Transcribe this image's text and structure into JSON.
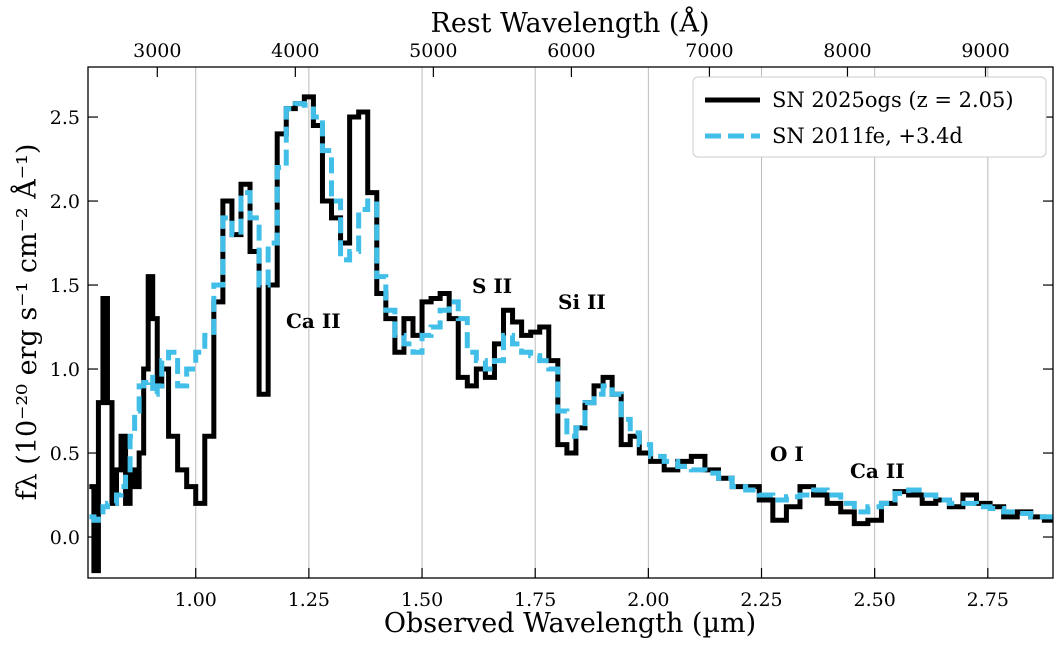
{
  "chart_data": {
    "type": "step",
    "xlabel": "Observed Wavelength (µm)",
    "x2label": "Rest Wavelength (Å)",
    "ylabel": "fλ (10⁻²⁰ erg s⁻¹ cm⁻² Å⁻¹)",
    "xlim": [
      0.762,
      2.894
    ],
    "x2lim": [
      2498,
      9489
    ],
    "ylim": [
      -0.244,
      2.798
    ],
    "xticks": [
      {
        "value": 1.0,
        "label": "1.00"
      },
      {
        "value": 1.25,
        "label": "1.25"
      },
      {
        "value": 1.5,
        "label": "1.50"
      },
      {
        "value": 1.75,
        "label": "1.75"
      },
      {
        "value": 2.0,
        "label": "2.00"
      },
      {
        "value": 2.25,
        "label": "2.25"
      },
      {
        "value": 2.5,
        "label": "2.50"
      },
      {
        "value": 2.75,
        "label": "2.75"
      }
    ],
    "x2ticks": [
      3000,
      4000,
      5000,
      6000,
      7000,
      8000,
      9000
    ],
    "yticks": [
      {
        "value": 0.0,
        "label": "0.0"
      },
      0.5,
      {
        "value": 1.0,
        "label": "1.0"
      },
      1.5,
      {
        "value": 2.0,
        "label": "2.0"
      },
      2.5
    ],
    "grid": true,
    "legend": "upper right",
    "annotations": [
      "Ca II",
      "S II",
      "Si II",
      "O I",
      "Ca II"
    ],
    "x": [
      0.77,
      0.78,
      0.79,
      0.8,
      0.81,
      0.82,
      0.83,
      0.84,
      0.85,
      0.86,
      0.87,
      0.88,
      0.89,
      0.9,
      0.91,
      0.92,
      0.93,
      0.95,
      0.97,
      0.99,
      1.01,
      1.03,
      1.05,
      1.07,
      1.09,
      1.11,
      1.13,
      1.15,
      1.17,
      1.19,
      1.21,
      1.23,
      1.25,
      1.27,
      1.29,
      1.31,
      1.33,
      1.35,
      1.37,
      1.39,
      1.41,
      1.43,
      1.45,
      1.47,
      1.49,
      1.51,
      1.53,
      1.55,
      1.57,
      1.59,
      1.61,
      1.63,
      1.65,
      1.67,
      1.69,
      1.71,
      1.73,
      1.75,
      1.77,
      1.79,
      1.81,
      1.83,
      1.85,
      1.87,
      1.89,
      1.91,
      1.93,
      1.95,
      1.97,
      1.99,
      2.02,
      2.05,
      2.08,
      2.11,
      2.14,
      2.17,
      2.2,
      2.23,
      2.26,
      2.29,
      2.32,
      2.35,
      2.38,
      2.41,
      2.44,
      2.47,
      2.5,
      2.53,
      2.56,
      2.59,
      2.62,
      2.65,
      2.68,
      2.71,
      2.74,
      2.77,
      2.8,
      2.83,
      2.86,
      2.89
    ],
    "series": [
      {
        "name": "SN 2025ogs (z = 2.05)",
        "color": "#000000",
        "dash": false,
        "values": [
          0.3,
          -0.2,
          0.8,
          1.42,
          0.8,
          0.2,
          0.4,
          0.6,
          0.2,
          0.4,
          0.3,
          0.5,
          1.0,
          1.55,
          1.3,
          0.9,
          1.0,
          0.6,
          0.4,
          0.3,
          0.2,
          0.6,
          1.4,
          2.0,
          1.8,
          2.1,
          1.7,
          0.85,
          1.5,
          2.4,
          2.55,
          2.58,
          2.62,
          2.45,
          2.0,
          1.9,
          1.75,
          2.5,
          2.53,
          2.05,
          1.45,
          1.3,
          1.1,
          1.3,
          1.2,
          1.4,
          1.42,
          1.45,
          1.3,
          0.95,
          0.9,
          1.0,
          0.95,
          1.15,
          1.35,
          1.28,
          1.2,
          1.22,
          1.25,
          1.05,
          0.55,
          0.5,
          0.65,
          0.8,
          0.9,
          0.95,
          0.85,
          0.55,
          0.6,
          0.5,
          0.45,
          0.4,
          0.45,
          0.48,
          0.4,
          0.35,
          0.3,
          0.3,
          0.22,
          0.1,
          0.18,
          0.3,
          0.25,
          0.2,
          0.15,
          0.08,
          0.1,
          0.2,
          0.27,
          0.25,
          0.2,
          0.22,
          0.18,
          0.25,
          0.2,
          0.18,
          0.12,
          0.15,
          0.12,
          0.1
        ]
      },
      {
        "name": "SN 2011fe, +3.4d",
        "color": "#41bfe8",
        "dash": true,
        "values": [
          0.12,
          0.1,
          0.15,
          0.18,
          0.2,
          0.2,
          0.25,
          0.3,
          0.4,
          0.6,
          0.75,
          0.9,
          0.92,
          0.95,
          0.85,
          0.9,
          1.05,
          1.1,
          0.9,
          1.0,
          1.1,
          1.2,
          1.5,
          1.9,
          1.8,
          2.05,
          1.9,
          1.5,
          1.75,
          2.2,
          2.55,
          2.58,
          2.57,
          2.5,
          2.3,
          2.0,
          1.65,
          1.7,
          1.95,
          2.0,
          1.55,
          1.35,
          1.2,
          1.15,
          1.1,
          1.2,
          1.25,
          1.35,
          1.4,
          1.3,
          1.1,
          1.05,
          1.0,
          1.05,
          1.2,
          1.15,
          1.1,
          1.08,
          1.05,
          1.0,
          0.75,
          0.6,
          0.65,
          0.8,
          0.85,
          0.9,
          0.85,
          0.7,
          0.62,
          0.55,
          0.48,
          0.45,
          0.42,
          0.4,
          0.38,
          0.35,
          0.3,
          0.28,
          0.25,
          0.22,
          0.24,
          0.25,
          0.28,
          0.25,
          0.2,
          0.15,
          0.18,
          0.2,
          0.26,
          0.28,
          0.25,
          0.22,
          0.2,
          0.2,
          0.18,
          0.17,
          0.15,
          0.14,
          0.12,
          0.12
        ]
      }
    ]
  }
}
